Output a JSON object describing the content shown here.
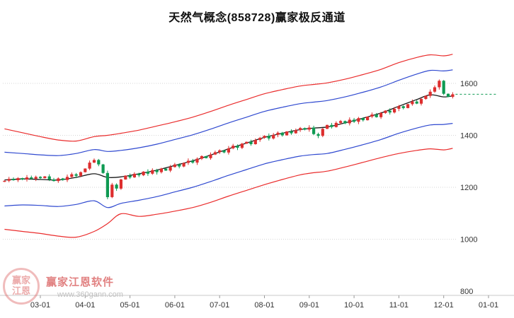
{
  "title": "天然气概念(858728)赢家极反通道",
  "watermark": {
    "brand": "赢家江恩软件",
    "url": "www.360gann.com",
    "seal_top": "赢家",
    "seal_bottom": "江恩"
  },
  "chart_data": {
    "type": "candlestick",
    "title": "天然气概念(858728)赢家极反通道",
    "ylim": [
      800,
      1790
    ],
    "y_ticks": [
      1600,
      1400,
      1200,
      1000,
      800
    ],
    "y_gridlines": [
      1000,
      1200,
      1400,
      1600
    ],
    "x_ticks": [
      {
        "m": 3,
        "label": "03-01"
      },
      {
        "m": 4,
        "label": "04-01"
      },
      {
        "m": 5,
        "label": "05-01"
      },
      {
        "m": 6,
        "label": "06-01"
      },
      {
        "m": 7,
        "label": "07-01"
      },
      {
        "m": 8,
        "label": "08-01"
      },
      {
        "m": 9,
        "label": "09-01"
      },
      {
        "m": 10,
        "label": "10-01"
      },
      {
        "m": 11,
        "label": "11-01"
      },
      {
        "m": 12,
        "label": "12-01"
      },
      {
        "m": 13,
        "label": "01-01"
      }
    ],
    "t_start": 2.2,
    "t_step": 0.1,
    "closes": [
      1225,
      1232,
      1227,
      1235,
      1230,
      1238,
      1233,
      1240,
      1235,
      1242,
      1230,
      1224,
      1234,
      1228,
      1240,
      1250,
      1244,
      1258,
      1272,
      1295,
      1305,
      1288,
      1255,
      1162,
      1210,
      1195,
      1230,
      1245,
      1238,
      1252,
      1246,
      1260,
      1252,
      1266,
      1258,
      1272,
      1264,
      1278,
      1288,
      1280,
      1294,
      1302,
      1295,
      1310,
      1320,
      1312,
      1326,
      1335,
      1342,
      1334,
      1350,
      1360,
      1352,
      1368,
      1375,
      1366,
      1382,
      1390,
      1398,
      1388,
      1402,
      1410,
      1400,
      1415,
      1408,
      1420,
      1428,
      1422,
      1430,
      1405,
      1398,
      1425,
      1440,
      1432,
      1448,
      1455,
      1446,
      1460,
      1452,
      1466,
      1458,
      1472,
      1480,
      1470,
      1486,
      1495,
      1488,
      1502,
      1512,
      1505,
      1520,
      1530,
      1522,
      1540,
      1552,
      1568,
      1585,
      1610,
      1560,
      1548,
      1558
    ],
    "channels": {
      "x_months": [
        2.2,
        2.6,
        3.0,
        3.4,
        3.8,
        4.2,
        4.5,
        4.8,
        5.2,
        5.6,
        6.0,
        6.4,
        6.8,
        7.2,
        7.6,
        8.0,
        8.4,
        8.8,
        9.1,
        9.4,
        9.8,
        10.2,
        10.6,
        11.0,
        11.4,
        11.7,
        12.0,
        12.2
      ],
      "red_upper": [
        1425,
        1410,
        1395,
        1382,
        1378,
        1395,
        1400,
        1408,
        1420,
        1436,
        1452,
        1470,
        1492,
        1516,
        1538,
        1560,
        1576,
        1590,
        1596,
        1602,
        1616,
        1634,
        1654,
        1680,
        1700,
        1710,
        1706,
        1712
      ],
      "blue_upper": [
        1335,
        1330,
        1325,
        1322,
        1330,
        1345,
        1338,
        1342,
        1352,
        1366,
        1384,
        1402,
        1424,
        1448,
        1470,
        1492,
        1508,
        1522,
        1528,
        1534,
        1548,
        1566,
        1586,
        1612,
        1636,
        1650,
        1648,
        1652
      ],
      "mid": [
        1228,
        1232,
        1230,
        1228,
        1238,
        1252,
        1238,
        1240,
        1252,
        1266,
        1284,
        1302,
        1324,
        1348,
        1370,
        1392,
        1408,
        1422,
        1428,
        1432,
        1448,
        1466,
        1486,
        1512,
        1538,
        1556,
        1548,
        1552
      ],
      "blue_lower": [
        1128,
        1132,
        1130,
        1126,
        1134,
        1148,
        1122,
        1138,
        1150,
        1164,
        1182,
        1200,
        1222,
        1246,
        1268,
        1290,
        1306,
        1320,
        1326,
        1330,
        1346,
        1364,
        1384,
        1408,
        1428,
        1440,
        1442,
        1446
      ],
      "red_lower": [
        1038,
        1030,
        1022,
        1012,
        1008,
        1030,
        1060,
        1098,
        1088,
        1096,
        1108,
        1122,
        1142,
        1166,
        1188,
        1210,
        1230,
        1248,
        1256,
        1262,
        1278,
        1296,
        1314,
        1330,
        1342,
        1348,
        1344,
        1350
      ]
    },
    "last_price": 1558,
    "colors": {
      "up": "#dd2e2e",
      "down": "#0e9a52",
      "mid": "#1a1a1a",
      "inner": "#2f49d0",
      "outer": "#ea2c2c",
      "grid": "#d6d6d6",
      "axis_line": "#c9c9c9",
      "tick": "#999999",
      "text": "#333333",
      "last": "#0e9a52"
    }
  }
}
